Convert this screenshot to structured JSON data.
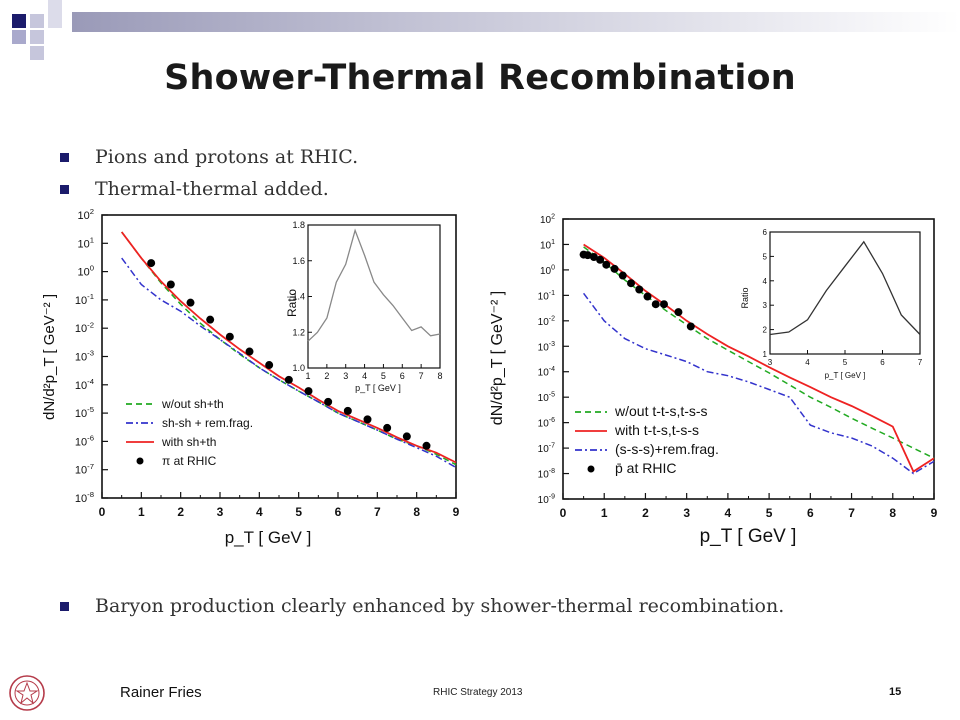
{
  "slide": {
    "title": "Shower-Thermal Recombination",
    "bullets": [
      "Pions and protons at RHIC.",
      "Thermal-thermal added.",
      "Baryon production clearly enhanced by shower-thermal recombination."
    ],
    "colors": {
      "top_bar": "#9a9ab8",
      "square_dark": "#1b1b6b",
      "square_light": "#a9a9cc",
      "bullet": "#1b1b6b"
    }
  },
  "footer": {
    "author": "Rainer Fries",
    "center": "RHIC Strategy 2013",
    "page": "15"
  },
  "chart_data": [
    {
      "type": "line",
      "xlabel": "p_T [ GeV ]",
      "ylabel": "dN/d²p_T [ GeV⁻² ]",
      "xlim": [
        0,
        9
      ],
      "ylim_log10": [
        -8,
        2
      ],
      "x_ticks": [
        "0",
        "1",
        "2",
        "3",
        "4",
        "5",
        "6",
        "7",
        "8",
        "9"
      ],
      "y_ticks": [
        "10^2",
        "10^1",
        "10^0",
        "10^-1",
        "10^-2",
        "10^-3",
        "10^-4",
        "10^-5",
        "10^-6",
        "10^-7",
        "10^-8"
      ],
      "legend_placement": "bottom-left",
      "series": [
        {
          "name": "w/out sh+th",
          "color": "#22aa22",
          "style": "dashed",
          "x": [
            0.5,
            1,
            1.5,
            2,
            2.5,
            3,
            3.5,
            4,
            4.5,
            5,
            5.5,
            6,
            6.5,
            7,
            7.5,
            8,
            8.5,
            9
          ],
          "y": [
            25,
            3,
            0.4,
            0.07,
            0.015,
            0.004,
            0.0012,
            0.0004,
            0.00015,
            6e-05,
            2.5e-05,
            1e-05,
            5e-06,
            2.5e-06,
            1.2e-06,
            7e-07,
            3.5e-07,
            1.5e-07
          ]
        },
        {
          "name": "sh-sh + rem.frag.",
          "color": "#3333cc",
          "style": "dashdot",
          "x": [
            0.5,
            1,
            1.5,
            2,
            2.5,
            3,
            3.5,
            4,
            4.5,
            5,
            5.5,
            6,
            6.5,
            7,
            7.5,
            8,
            8.5,
            9
          ],
          "y": [
            3,
            0.35,
            0.1,
            0.04,
            0.012,
            0.004,
            0.0013,
            0.0004,
            0.00015,
            6e-05,
            2.5e-05,
            1e-05,
            5e-06,
            2.5e-06,
            1.2e-06,
            6e-07,
            3e-07,
            1.2e-07
          ]
        },
        {
          "name": "with sh+th",
          "color": "#ee2222",
          "style": "solid",
          "x": [
            0.5,
            1,
            1.5,
            2,
            2.5,
            3,
            3.5,
            4,
            4.5,
            5,
            5.5,
            6,
            6.5,
            7,
            7.5,
            8,
            8.5,
            9
          ],
          "y": [
            25,
            3,
            0.45,
            0.09,
            0.022,
            0.006,
            0.0018,
            0.0006,
            0.0002,
            8e-05,
            3e-05,
            1.2e-05,
            6e-06,
            3e-06,
            1.4e-06,
            7e-07,
            4e-07,
            1.8e-07
          ]
        },
        {
          "name": "π at RHIC",
          "color": "#000000",
          "style": "points",
          "x": [
            1.25,
            1.75,
            2.25,
            2.75,
            3.25,
            3.75,
            4.25,
            4.75,
            5.25,
            5.75,
            6.25,
            6.75,
            7.25,
            7.75,
            8.25
          ],
          "y": [
            2,
            0.35,
            0.08,
            0.02,
            0.005,
            0.0015,
            0.0005,
            0.00015,
            6e-05,
            2.5e-05,
            1.2e-05,
            6e-06,
            3e-06,
            1.5e-06,
            7e-07
          ]
        }
      ],
      "inset": {
        "xlabel": "p_T [ GeV ]",
        "ylabel": "Ratio",
        "xlim": [
          1,
          8
        ],
        "ylim": [
          1.0,
          1.8
        ],
        "x_ticks": [
          "1",
          "2",
          "3",
          "4",
          "5",
          "6",
          "7",
          "8"
        ],
        "y_ticks": [
          "1.0",
          "1.2",
          "1.4",
          "1.6",
          "1.8"
        ],
        "x": [
          1,
          1.5,
          2,
          2.5,
          3,
          3.5,
          4,
          4.5,
          5,
          5.5,
          6,
          6.5,
          7,
          7.5,
          8
        ],
        "y": [
          1.15,
          1.2,
          1.28,
          1.48,
          1.58,
          1.77,
          1.63,
          1.48,
          1.41,
          1.35,
          1.28,
          1.21,
          1.23,
          1.18,
          1.19
        ]
      }
    },
    {
      "type": "line",
      "xlabel": "p_T [ GeV ]",
      "ylabel": "dN/d²p_T [ GeV⁻² ]",
      "xlim": [
        0,
        9
      ],
      "ylim_log10": [
        -9,
        2
      ],
      "x_ticks": [
        "0",
        "1",
        "2",
        "3",
        "4",
        "5",
        "6",
        "7",
        "8",
        "9"
      ],
      "y_ticks": [
        "10^2",
        "10^1",
        "10^0",
        "10^-1",
        "10^-2",
        "10^-3",
        "10^-4",
        "10^-5",
        "10^-6",
        "10^-7",
        "10^-8",
        "10^-9"
      ],
      "legend_placement": "bottom-left",
      "series": [
        {
          "name": "w/out t-t-s,t-s-s",
          "color": "#22aa22",
          "style": "dashed",
          "x": [
            0.5,
            1,
            1.5,
            2,
            2.5,
            3,
            3.5,
            4,
            4.5,
            5,
            5.5,
            6,
            6.5,
            7,
            7.5,
            8,
            8.5,
            9
          ],
          "y": [
            8,
            2,
            0.4,
            0.1,
            0.025,
            0.007,
            0.002,
            0.0007,
            0.00025,
            9e-05,
            3e-05,
            1e-05,
            4e-06,
            1.5e-06,
            6e-07,
            2.5e-07,
            1e-07,
            4e-08
          ]
        },
        {
          "name": "with t-t-s,t-s-s",
          "color": "#ee2222",
          "style": "solid",
          "x": [
            0.5,
            1,
            1.5,
            2,
            2.5,
            3,
            3.5,
            4,
            4.5,
            5,
            5.5,
            6,
            6.5,
            7,
            7.5,
            8,
            8.5,
            9
          ],
          "y": [
            10,
            3,
            0.7,
            0.15,
            0.04,
            0.01,
            0.003,
            0.001,
            0.0004,
            0.00015,
            6e-05,
            2.5e-05,
            1e-05,
            4.5e-06,
            1.8e-06,
            7e-07,
            1.2e-08,
            4e-08
          ]
        },
        {
          "name": "(s-s-s)+rem.frag.",
          "color": "#3333cc",
          "style": "dashdot",
          "x": [
            0.5,
            1,
            1.5,
            2,
            2.5,
            3,
            3.5,
            4,
            4.5,
            5,
            5.5,
            6,
            6.5,
            7,
            7.5,
            8,
            8.5,
            9
          ],
          "y": [
            0.12,
            0.01,
            0.002,
            0.0008,
            0.00045,
            0.00025,
            0.0001,
            7e-05,
            4e-05,
            2e-05,
            1e-05,
            8e-07,
            4e-07,
            2.5e-07,
            1.2e-07,
            4e-08,
            1e-08,
            3e-08
          ]
        },
        {
          "name": "p̄ at RHIC",
          "color": "#000000",
          "style": "points",
          "x": [
            0.5,
            0.6,
            0.75,
            0.9,
            1.05,
            1.25,
            1.45,
            1.65,
            1.85,
            2.05,
            2.25,
            2.45,
            2.8,
            3.1
          ],
          "y": [
            4,
            3.8,
            3.2,
            2.5,
            1.6,
            1.1,
            0.6,
            0.3,
            0.17,
            0.09,
            0.045,
            0.045,
            0.022,
            0.006
          ]
        }
      ],
      "inset": {
        "xlabel": "p_T [ GeV ]",
        "ylabel": "Ratio",
        "xlim": [
          3,
          7
        ],
        "ylim": [
          1,
          6
        ],
        "x_ticks": [
          "3",
          "4",
          "5",
          "6",
          "7"
        ],
        "y_ticks": [
          "1",
          "2",
          "3",
          "4",
          "5",
          "6"
        ],
        "x": [
          3,
          3.5,
          4,
          4.5,
          5,
          5.5,
          6,
          6.5,
          7
        ],
        "y": [
          1.8,
          1.9,
          2.4,
          3.6,
          4.6,
          5.6,
          4.3,
          2.6,
          1.8
        ]
      }
    }
  ]
}
